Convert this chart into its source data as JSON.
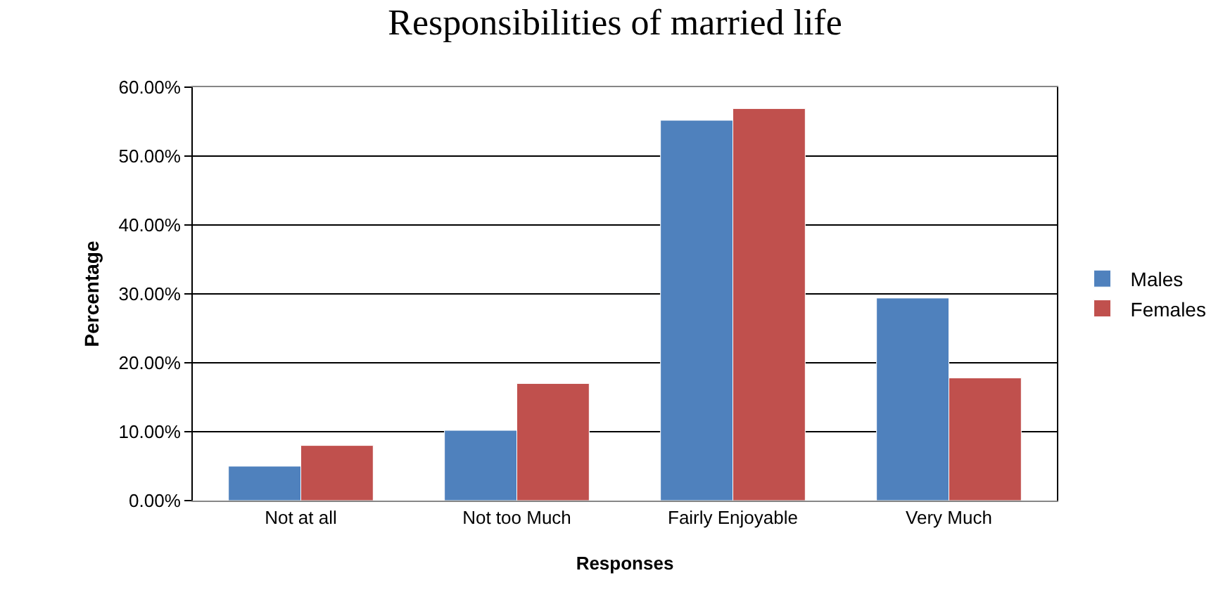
{
  "chart_data": {
    "type": "bar",
    "title": "Responsibilities of married life",
    "xlabel": "Responses",
    "ylabel": "Percentage",
    "categories": [
      "Not at all",
      "Not too Much",
      "Fairly Enjoyable",
      "Very Much"
    ],
    "series": [
      {
        "name": "Males",
        "color": "#4f81bd",
        "values": [
          5.0,
          10.2,
          55.2,
          29.4
        ]
      },
      {
        "name": "Females",
        "color": "#c0504d",
        "values": [
          8.0,
          17.0,
          56.9,
          17.8
        ]
      }
    ],
    "ylim": [
      0,
      60
    ],
    "yticks": [
      {
        "value": 0,
        "label": "0.00%"
      },
      {
        "value": 10,
        "label": "10.00%"
      },
      {
        "value": 20,
        "label": "20.00%"
      },
      {
        "value": 30,
        "label": "30.00%"
      },
      {
        "value": 40,
        "label": "40.00%"
      },
      {
        "value": 50,
        "label": "50.00%"
      },
      {
        "value": 60,
        "label": "60.00%"
      }
    ],
    "grid": "y",
    "legend": "right"
  }
}
